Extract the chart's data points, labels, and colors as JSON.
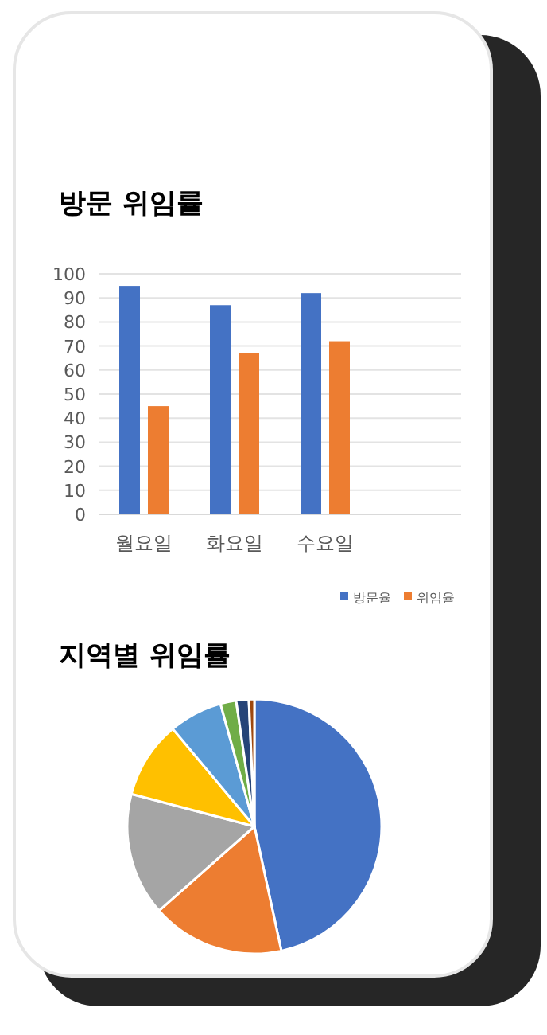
{
  "chart_data": [
    {
      "type": "bar",
      "title": "방문 위임률",
      "categories": [
        "월요일",
        "화요일",
        "수요일",
        null
      ],
      "series": [
        {
          "name": "방문율",
          "color": "#4472c4",
          "values": [
            95,
            87,
            92,
            null
          ]
        },
        {
          "name": "위임율",
          "color": "#ed7d31",
          "values": [
            45,
            67,
            72,
            null
          ]
        }
      ],
      "ylim": [
        0,
        100
      ],
      "yticks": [
        0,
        10,
        20,
        30,
        40,
        50,
        60,
        70,
        80,
        90,
        100
      ],
      "grid": "y",
      "legend": "bottom right"
    },
    {
      "type": "pie",
      "title": "지역별 위임률",
      "categories": [
        null,
        null,
        null,
        null,
        null,
        null,
        null,
        null
      ],
      "values": [
        46.6,
        16.9,
        15.6,
        9.8,
        6.8,
        2.0,
        1.6,
        0.7
      ],
      "colors": [
        "#4472c4",
        "#ed7d31",
        "#a5a5a5",
        "#ffc000",
        "#5b9bd5",
        "#70ad47",
        "#264478",
        "#9e480e"
      ]
    }
  ]
}
